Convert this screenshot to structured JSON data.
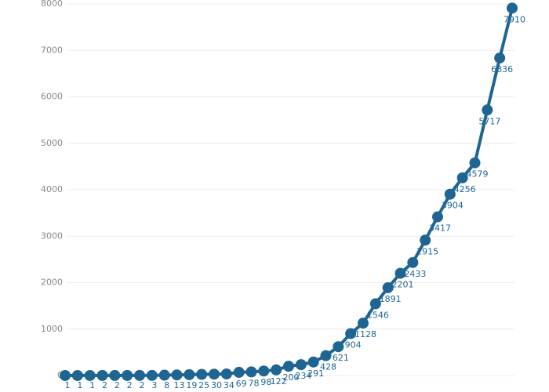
{
  "chart_data": {
    "type": "line",
    "values": [
      1,
      1,
      1,
      2,
      2,
      2,
      2,
      3,
      8,
      13,
      19,
      25,
      30,
      34,
      69,
      78,
      98,
      122,
      200,
      234,
      291,
      428,
      621,
      904,
      1128,
      1546,
      1891,
      2201,
      2433,
      2915,
      3417,
      3904,
      4256,
      4579,
      5717,
      6836,
      7910
    ],
    "color": "#1f6593",
    "ylim": [
      0,
      8000
    ],
    "yticks": [
      0,
      1000,
      2000,
      3000,
      4000,
      5000,
      6000,
      7000,
      8000
    ],
    "grid": true
  }
}
